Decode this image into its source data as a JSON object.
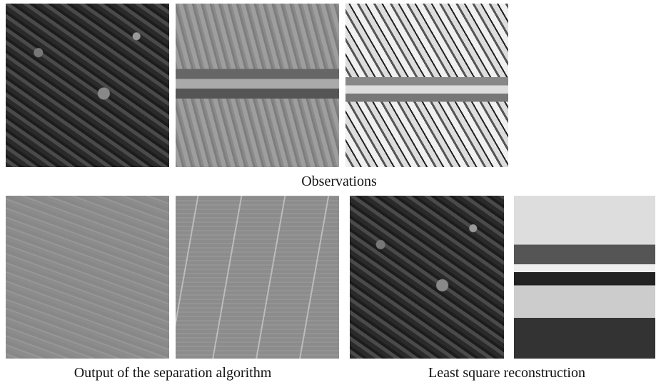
{
  "figure": {
    "observations_caption": "Observations",
    "separation_caption": "Output of the separation algorithm",
    "reconstruction_caption": "Least square reconstruction"
  }
}
